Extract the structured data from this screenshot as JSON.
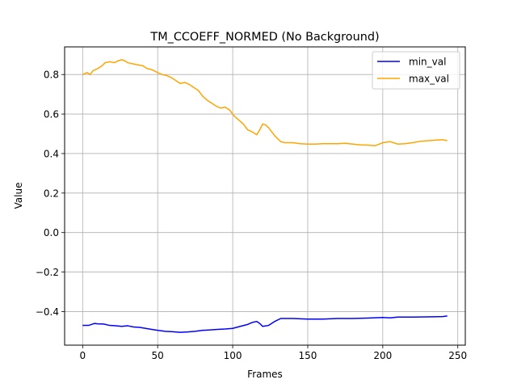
{
  "chart_data": {
    "type": "line",
    "title": "TM_CCOEFF_NORMED (No Background)",
    "xlabel": "Frames",
    "ylabel": "Value",
    "xlim": [
      -12,
      255
    ],
    "ylim": [
      -0.57,
      0.94
    ],
    "xticks": [
      0,
      50,
      100,
      150,
      200,
      250
    ],
    "yticks": [
      -0.4,
      -0.2,
      0.0,
      0.2,
      0.4,
      0.6,
      0.8
    ],
    "ytick_labels": [
      "−0.4",
      "−0.2",
      "0.0",
      "0.2",
      "0.4",
      "0.6",
      "0.8"
    ],
    "grid": true,
    "legend_position": "upper right",
    "series": [
      {
        "name": "min_val",
        "color": "#0000ff",
        "x": [
          0,
          4,
          6,
          8,
          10,
          14,
          18,
          22,
          26,
          30,
          34,
          38,
          42,
          46,
          50,
          55,
          60,
          65,
          70,
          75,
          80,
          85,
          90,
          95,
          100,
          105,
          110,
          113,
          116,
          118,
          120,
          124,
          128,
          132,
          140,
          150,
          160,
          170,
          180,
          190,
          200,
          205,
          210,
          220,
          230,
          240,
          243
        ],
        "y": [
          -0.47,
          -0.47,
          -0.465,
          -0.46,
          -0.462,
          -0.463,
          -0.47,
          -0.472,
          -0.475,
          -0.472,
          -0.478,
          -0.48,
          -0.485,
          -0.49,
          -0.495,
          -0.5,
          -0.502,
          -0.505,
          -0.503,
          -0.5,
          -0.495,
          -0.493,
          -0.49,
          -0.488,
          -0.485,
          -0.475,
          -0.465,
          -0.455,
          -0.45,
          -0.46,
          -0.475,
          -0.47,
          -0.45,
          -0.435,
          -0.435,
          -0.438,
          -0.438,
          -0.435,
          -0.435,
          -0.433,
          -0.43,
          -0.432,
          -0.428,
          -0.428,
          -0.427,
          -0.425,
          -0.422
        ]
      },
      {
        "name": "max_val",
        "color": "#ffa500",
        "x": [
          0,
          3,
          5,
          7,
          10,
          13,
          15,
          18,
          21,
          24,
          26,
          28,
          30,
          33,
          36,
          40,
          43,
          46,
          50,
          53,
          56,
          59,
          62,
          65,
          68,
          71,
          74,
          77,
          80,
          83,
          86,
          89,
          92,
          95,
          98,
          101,
          104,
          107,
          110,
          113,
          116,
          118,
          120,
          122,
          124,
          126,
          128,
          130,
          132,
          135,
          140,
          145,
          150,
          155,
          160,
          170,
          175,
          180,
          185,
          190,
          195,
          200,
          205,
          210,
          215,
          220,
          225,
          230,
          235,
          240,
          243
        ],
        "y": [
          0.8,
          0.81,
          0.8,
          0.82,
          0.83,
          0.845,
          0.86,
          0.865,
          0.86,
          0.87,
          0.875,
          0.87,
          0.86,
          0.855,
          0.85,
          0.845,
          0.83,
          0.825,
          0.81,
          0.8,
          0.795,
          0.785,
          0.77,
          0.755,
          0.76,
          0.75,
          0.735,
          0.72,
          0.69,
          0.67,
          0.655,
          0.64,
          0.63,
          0.635,
          0.62,
          0.59,
          0.57,
          0.55,
          0.52,
          0.51,
          0.495,
          0.52,
          0.55,
          0.545,
          0.53,
          0.51,
          0.49,
          0.475,
          0.46,
          0.455,
          0.455,
          0.45,
          0.448,
          0.448,
          0.45,
          0.45,
          0.452,
          0.448,
          0.444,
          0.443,
          0.44,
          0.455,
          0.46,
          0.448,
          0.45,
          0.455,
          0.462,
          0.465,
          0.468,
          0.47,
          0.465
        ]
      }
    ]
  }
}
